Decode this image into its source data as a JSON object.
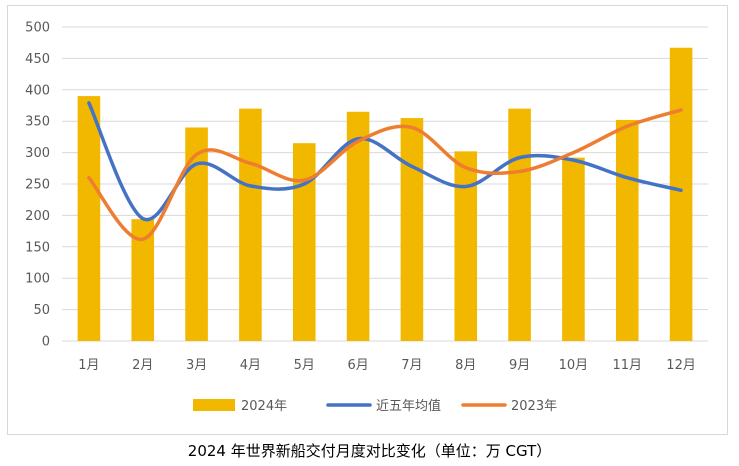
{
  "caption": "2024 年世界新船交付月度对比变化（单位：万 CGT）",
  "chart_data": {
    "type": "bar",
    "categories": [
      "1月",
      "2月",
      "3月",
      "4月",
      "5月",
      "6月",
      "7月",
      "8月",
      "9月",
      "10月",
      "11月",
      "12月"
    ],
    "ylim": [
      0,
      500
    ],
    "yticks": [
      0,
      50,
      100,
      150,
      200,
      250,
      300,
      350,
      400,
      450,
      500
    ],
    "grid": true,
    "legend_position": "bottom",
    "series": [
      {
        "name": "2024年",
        "kind": "bar",
        "color": "#f2b800",
        "values": [
          390,
          194,
          340,
          370,
          315,
          365,
          355,
          302,
          370,
          292,
          352,
          467
        ]
      },
      {
        "name": "近五年均值",
        "kind": "line",
        "color": "#4472c4",
        "values": [
          379,
          195,
          282,
          247,
          250,
          322,
          278,
          246,
          292,
          288,
          260,
          240
        ]
      },
      {
        "name": "2023年",
        "kind": "line",
        "color": "#ed7d31",
        "values": [
          260,
          162,
          297,
          283,
          256,
          318,
          340,
          276,
          270,
          300,
          342,
          368
        ]
      }
    ]
  }
}
